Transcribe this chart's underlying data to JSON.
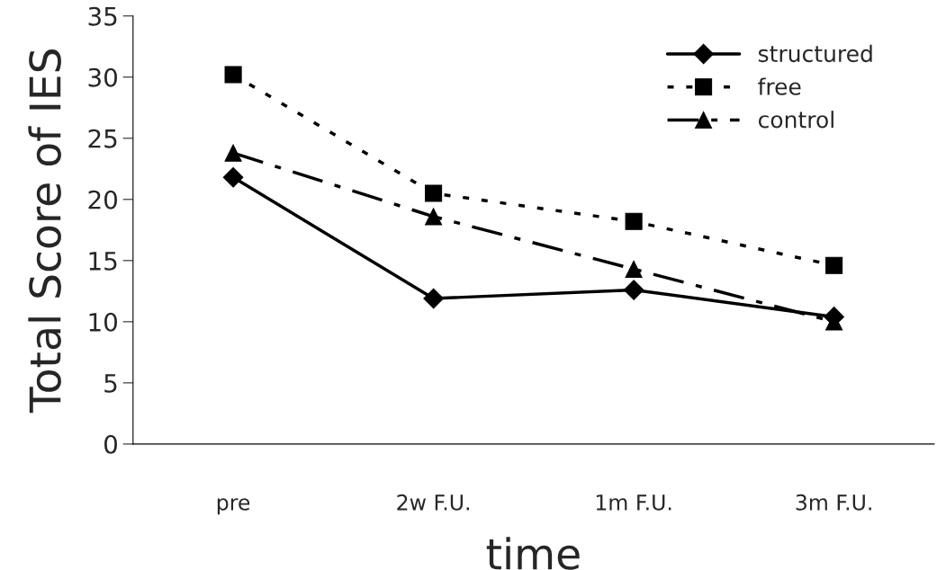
{
  "chart_data": {
    "type": "line",
    "xlabel": "time",
    "ylabel": "Total Score of IES",
    "categories": [
      "pre",
      "2w F.U.",
      "1m F.U.",
      "3m F.U."
    ],
    "series": [
      {
        "name": "structured",
        "color": "#000000",
        "marker": "diamond",
        "line_style": "solid",
        "values": [
          21.8,
          11.9,
          12.6,
          10.4
        ]
      },
      {
        "name": "free",
        "color": "#000000",
        "marker": "square",
        "line_style": "dotted",
        "values": [
          30.2,
          20.5,
          18.2,
          14.6
        ]
      },
      {
        "name": "control",
        "color": "#000000",
        "marker": "triangle",
        "line_style": "dashed",
        "values": [
          23.8,
          18.6,
          14.3,
          10.0
        ]
      }
    ],
    "ylim": [
      0,
      35
    ],
    "yticks": [
      0,
      5,
      10,
      15,
      20,
      25,
      30,
      35
    ],
    "grid": false,
    "legend": "top right"
  }
}
